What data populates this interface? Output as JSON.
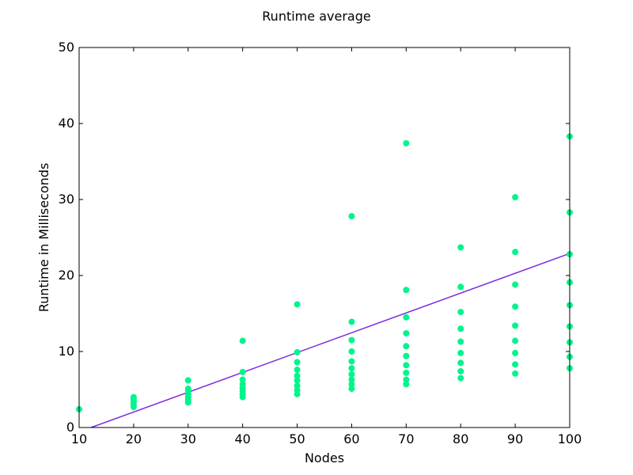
{
  "chart_data": {
    "type": "scatter",
    "title": "Runtime average",
    "xlabel": "Nodes",
    "ylabel": "Runtime in Milliseconds",
    "xlim": [
      10,
      100
    ],
    "ylim": [
      0,
      50
    ],
    "xticks": [
      "10",
      "20",
      "30",
      "40",
      "50",
      "60",
      "70",
      "80",
      "90",
      "100"
    ],
    "yticks": [
      "0",
      "10",
      "20",
      "30",
      "40",
      "50"
    ],
    "grid": false,
    "legend": "none",
    "colors": {
      "points": "#00f58b",
      "trend": "#7b2be2",
      "axes": "#000000",
      "background": "#ffffff"
    },
    "series": [
      {
        "points": [
          [
            10,
            2.4
          ],
          [
            20,
            2.7
          ],
          [
            20,
            3.0
          ],
          [
            20,
            3.4
          ],
          [
            20,
            3.7
          ],
          [
            20,
            4.0
          ],
          [
            30,
            3.3
          ],
          [
            30,
            3.6
          ],
          [
            30,
            4.0
          ],
          [
            30,
            4.4
          ],
          [
            30,
            4.9
          ],
          [
            30,
            5.1
          ],
          [
            30,
            6.2
          ],
          [
            40,
            4.0
          ],
          [
            40,
            4.4
          ],
          [
            40,
            4.8
          ],
          [
            40,
            5.2
          ],
          [
            40,
            5.7
          ],
          [
            40,
            6.3
          ],
          [
            40,
            7.3
          ],
          [
            40,
            11.4
          ],
          [
            50,
            4.4
          ],
          [
            50,
            4.9
          ],
          [
            50,
            5.5
          ],
          [
            50,
            6.2
          ],
          [
            50,
            6.8
          ],
          [
            50,
            7.6
          ],
          [
            50,
            8.6
          ],
          [
            50,
            9.9
          ],
          [
            50,
            16.2
          ],
          [
            60,
            5.1
          ],
          [
            60,
            5.7
          ],
          [
            60,
            6.3
          ],
          [
            60,
            7.0
          ],
          [
            60,
            7.8
          ],
          [
            60,
            8.7
          ],
          [
            60,
            10.0
          ],
          [
            60,
            11.5
          ],
          [
            60,
            13.9
          ],
          [
            60,
            27.8
          ],
          [
            70,
            5.7
          ],
          [
            70,
            6.3
          ],
          [
            70,
            7.2
          ],
          [
            70,
            8.2
          ],
          [
            70,
            9.4
          ],
          [
            70,
            10.7
          ],
          [
            70,
            12.4
          ],
          [
            70,
            14.5
          ],
          [
            70,
            18.1
          ],
          [
            70,
            37.4
          ],
          [
            80,
            6.5
          ],
          [
            80,
            7.4
          ],
          [
            80,
            8.5
          ],
          [
            80,
            9.8
          ],
          [
            80,
            11.3
          ],
          [
            80,
            13.0
          ],
          [
            80,
            15.2
          ],
          [
            80,
            18.5
          ],
          [
            80,
            23.7
          ],
          [
            90,
            7.1
          ],
          [
            90,
            8.3
          ],
          [
            90,
            9.8
          ],
          [
            90,
            11.4
          ],
          [
            90,
            13.4
          ],
          [
            90,
            15.9
          ],
          [
            90,
            18.8
          ],
          [
            90,
            23.1
          ],
          [
            90,
            30.3
          ],
          [
            100,
            7.8
          ],
          [
            100,
            9.3
          ],
          [
            100,
            11.2
          ],
          [
            100,
            13.3
          ],
          [
            100,
            16.1
          ],
          [
            100,
            19.1
          ],
          [
            100,
            22.8
          ],
          [
            100,
            28.3
          ],
          [
            100,
            38.3
          ]
        ]
      }
    ],
    "trendline": {
      "x": [
        12.2,
        100
      ],
      "y": [
        0,
        22.9
      ]
    }
  }
}
